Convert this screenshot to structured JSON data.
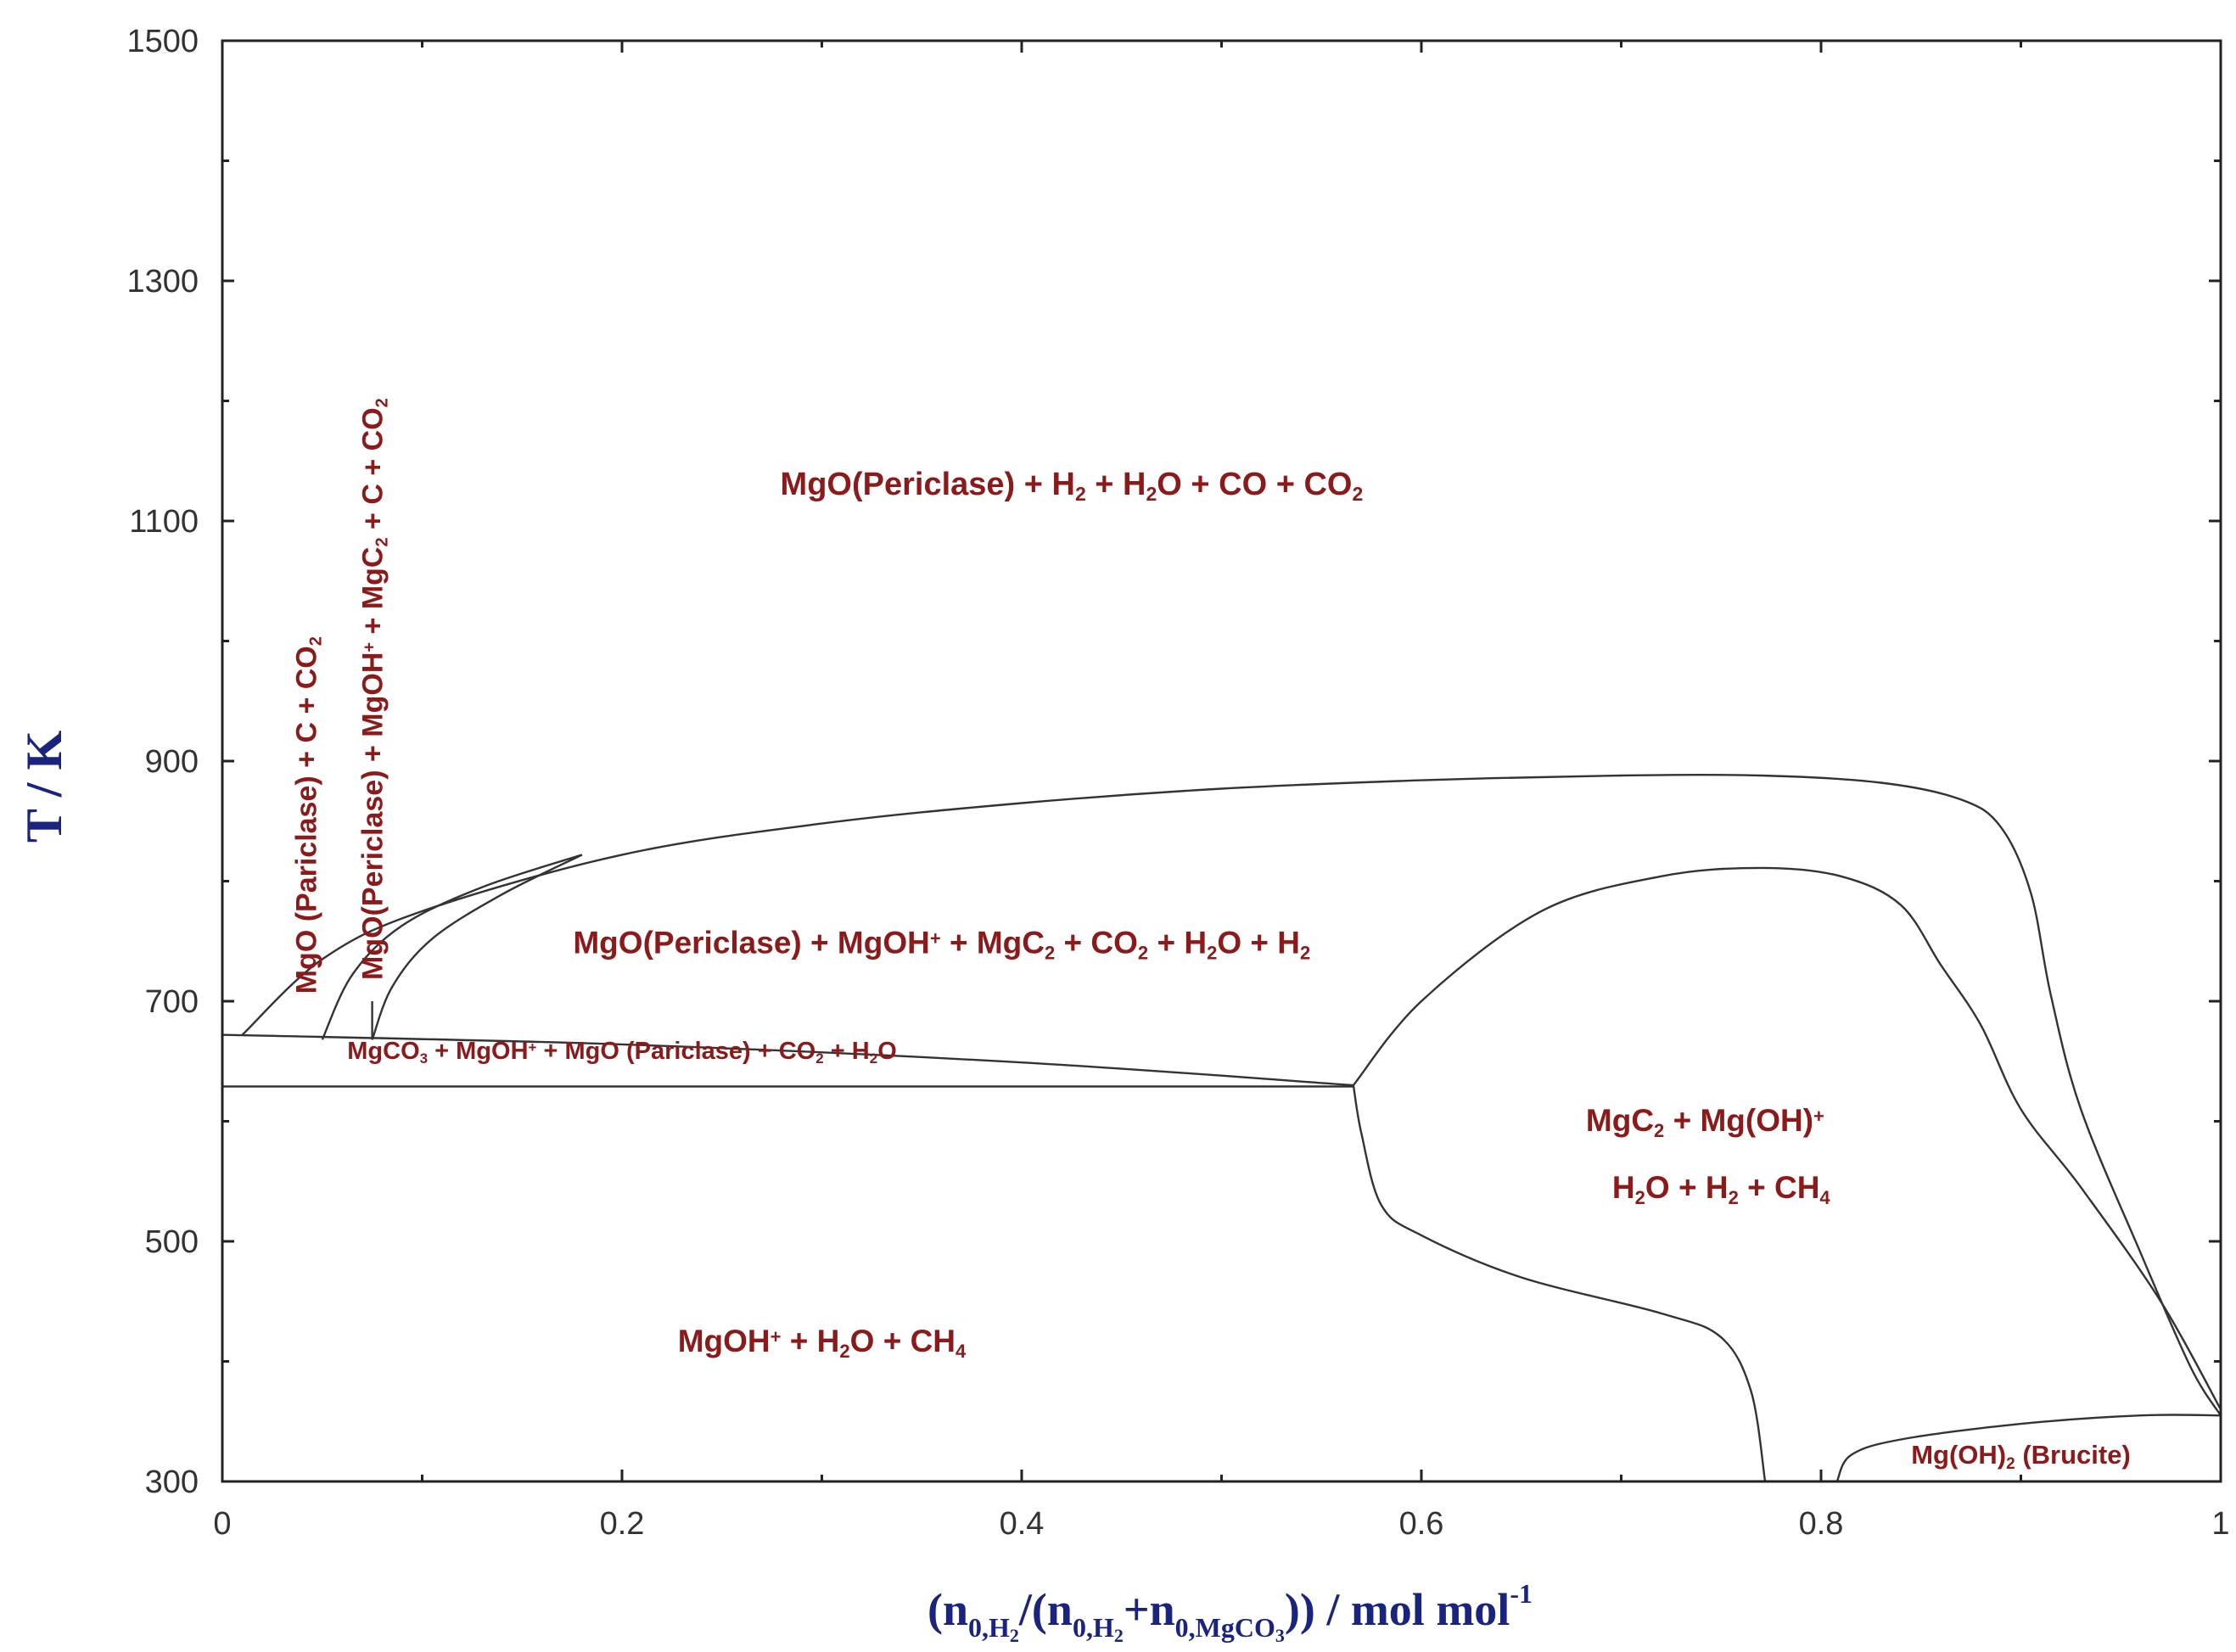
{
  "chart_data": {
    "type": "phase-diagram",
    "x_range": [
      0,
      1
    ],
    "y_range": [
      300,
      1500
    ],
    "x_ticks": [
      "0",
      "0.2",
      "0.4",
      "0.6",
      "0.8",
      "1"
    ],
    "y_ticks": [
      "300",
      "500",
      "700",
      "900",
      "1100",
      "1300",
      "1500"
    ],
    "ylabel": "T / K",
    "xlabel": {
      "open": "(n",
      "sub_h2_a": "0,H",
      "sub2_a": "2",
      "mid": "/(n",
      "sub_h2_b": "0,H",
      "sub2_b": "2",
      "plus": "+n",
      "sub_mgco3": "0,MgCO",
      "sub3": "3",
      "close": ")) / mol mol",
      "sup": "-1"
    },
    "regions": [
      {
        "id": "top",
        "parts": [
          [
            "MgO(Periclase) + H",
            ""
          ],
          [
            "2",
            "sub"
          ],
          [
            " + H",
            ""
          ],
          [
            "2",
            "sub"
          ],
          [
            "O + CO + CO",
            ""
          ],
          [
            "2",
            "sub"
          ]
        ]
      },
      {
        "id": "mid",
        "parts": [
          [
            "MgO(Periclase) + MgOH",
            ""
          ],
          [
            "+",
            "sup"
          ],
          [
            " + MgC",
            ""
          ],
          [
            "2",
            "sub"
          ],
          [
            " + CO",
            ""
          ],
          [
            "2",
            "sub"
          ],
          [
            " + H",
            ""
          ],
          [
            "2",
            "sub"
          ],
          [
            "O + H",
            ""
          ],
          [
            "2",
            "sub"
          ]
        ]
      },
      {
        "id": "band",
        "parts": [
          [
            "MgCO",
            ""
          ],
          [
            "3",
            "sub"
          ],
          [
            " + MgOH",
            ""
          ],
          [
            "+",
            "sup"
          ],
          [
            " + MgO (Pariclase) + CO",
            ""
          ],
          [
            "2",
            "sub"
          ],
          [
            " + H",
            ""
          ],
          [
            "2",
            "sub"
          ],
          [
            "O",
            ""
          ]
        ]
      },
      {
        "id": "low",
        "parts": [
          [
            "MgOH",
            ""
          ],
          [
            "+",
            "sup"
          ],
          [
            " + H",
            ""
          ],
          [
            "2",
            "sub"
          ],
          [
            "O + CH",
            ""
          ],
          [
            "4",
            "sub"
          ]
        ]
      },
      {
        "id": "right1",
        "parts": [
          [
            "MgC",
            ""
          ],
          [
            "2",
            "sub"
          ],
          [
            " + Mg(OH)",
            ""
          ],
          [
            "+",
            "sup"
          ]
        ]
      },
      {
        "id": "right2",
        "parts": [
          [
            "H",
            ""
          ],
          [
            "2",
            "sub"
          ],
          [
            "O + H",
            ""
          ],
          [
            "2",
            "sub"
          ],
          [
            " + CH",
            ""
          ],
          [
            "4",
            "sub"
          ]
        ]
      },
      {
        "id": "brucite",
        "parts": [
          [
            "Mg(OH)",
            ""
          ],
          [
            "2",
            "sub"
          ],
          [
            " (Brucite)",
            ""
          ]
        ]
      },
      {
        "id": "vert1",
        "parts": [
          [
            "MgO (Pariclase) + C + CO",
            ""
          ],
          [
            "2",
            "sub"
          ]
        ]
      },
      {
        "id": "vert2",
        "parts": [
          [
            "MgO(Periclase) + MgOH",
            ""
          ],
          [
            "+",
            "sup"
          ],
          [
            " + MgC",
            ""
          ],
          [
            "2",
            "sub"
          ],
          [
            " + C + CO",
            ""
          ],
          [
            "2",
            "sub"
          ]
        ]
      }
    ],
    "boundaries": [
      {
        "name": "outer-dome",
        "points": [
          [
            0.01,
            672
          ],
          [
            0.05,
            735
          ],
          [
            0.1,
            775
          ],
          [
            0.2,
            822
          ],
          [
            0.3,
            848
          ],
          [
            0.4,
            865
          ],
          [
            0.5,
            877
          ],
          [
            0.6,
            884
          ],
          [
            0.7,
            888
          ],
          [
            0.77,
            888
          ],
          [
            0.83,
            882
          ],
          [
            0.87,
            868
          ],
          [
            0.89,
            845
          ],
          [
            0.905,
            790
          ],
          [
            0.915,
            705
          ],
          [
            0.93,
            610
          ],
          [
            0.96,
            490
          ],
          [
            0.985,
            395
          ],
          [
            1.0,
            355
          ]
        ]
      },
      {
        "name": "inner-curve-1",
        "points": [
          [
            0.05,
            668
          ],
          [
            0.065,
            722
          ],
          [
            0.09,
            763
          ],
          [
            0.13,
            795
          ],
          [
            0.18,
            822
          ]
        ]
      },
      {
        "name": "inner-curve-2",
        "points": [
          [
            0.075,
            668
          ],
          [
            0.085,
            712
          ],
          [
            0.105,
            752
          ],
          [
            0.14,
            789
          ],
          [
            0.18,
            822
          ]
        ]
      },
      {
        "name": "vertical-left",
        "points": [
          [
            0.075,
            668
          ],
          [
            0.075,
            700
          ]
        ]
      },
      {
        "name": "band-upper",
        "points": [
          [
            0.0,
            672
          ],
          [
            0.2,
            664
          ],
          [
            0.4,
            649
          ],
          [
            0.566,
            630
          ]
        ]
      },
      {
        "name": "band-lower",
        "points": [
          [
            0.0,
            629
          ],
          [
            0.566,
            629
          ]
        ]
      },
      {
        "name": "inner-dome",
        "points": [
          [
            0.566,
            630
          ],
          [
            0.6,
            700
          ],
          [
            0.66,
            775
          ],
          [
            0.72,
            804
          ],
          [
            0.77,
            811
          ],
          [
            0.81,
            804
          ],
          [
            0.84,
            780
          ],
          [
            0.86,
            730
          ],
          [
            0.88,
            680
          ],
          [
            0.9,
            610
          ],
          [
            0.93,
            545
          ],
          [
            0.97,
            450
          ],
          [
            1.0,
            360
          ]
        ]
      },
      {
        "name": "lower-boundary",
        "points": [
          [
            0.566,
            630
          ],
          [
            0.57,
            590
          ],
          [
            0.58,
            530
          ],
          [
            0.6,
            505
          ],
          [
            0.65,
            470
          ],
          [
            0.72,
            440
          ],
          [
            0.75,
            420
          ],
          [
            0.765,
            375
          ],
          [
            0.772,
            300
          ]
        ]
      },
      {
        "name": "brucite-boundary",
        "points": [
          [
            0.808,
            300
          ],
          [
            0.815,
            322
          ],
          [
            0.84,
            335
          ],
          [
            0.9,
            348
          ],
          [
            0.96,
            355
          ],
          [
            1.0,
            355
          ]
        ]
      }
    ],
    "grid": false,
    "legend": "none"
  }
}
